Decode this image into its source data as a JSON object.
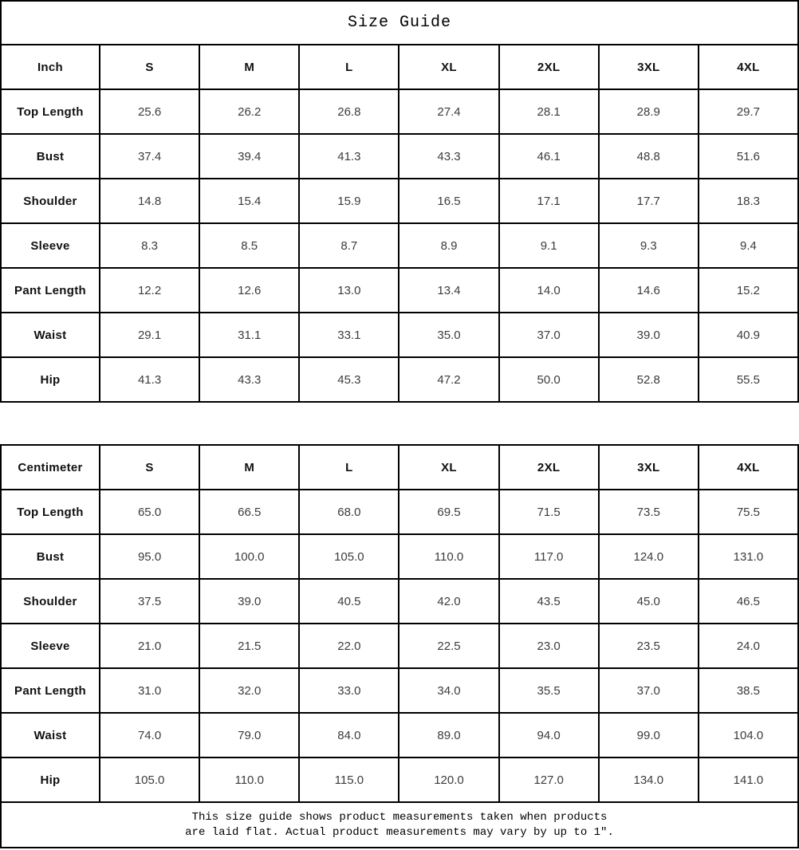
{
  "title": "Size Guide",
  "sizes": [
    "S",
    "M",
    "L",
    "XL",
    "2XL",
    "3XL",
    "4XL"
  ],
  "tables": [
    {
      "unit_label": "Inch",
      "rows": [
        {
          "label": "Top Length",
          "values": [
            "25.6",
            "26.2",
            "26.8",
            "27.4",
            "28.1",
            "28.9",
            "29.7"
          ]
        },
        {
          "label": "Bust",
          "values": [
            "37.4",
            "39.4",
            "41.3",
            "43.3",
            "46.1",
            "48.8",
            "51.6"
          ]
        },
        {
          "label": "Shoulder",
          "values": [
            "14.8",
            "15.4",
            "15.9",
            "16.5",
            "17.1",
            "17.7",
            "18.3"
          ]
        },
        {
          "label": "Sleeve",
          "values": [
            "8.3",
            "8.5",
            "8.7",
            "8.9",
            "9.1",
            "9.3",
            "9.4"
          ]
        },
        {
          "label": "Pant Length",
          "values": [
            "12.2",
            "12.6",
            "13.0",
            "13.4",
            "14.0",
            "14.6",
            "15.2"
          ]
        },
        {
          "label": "Waist",
          "values": [
            "29.1",
            "31.1",
            "33.1",
            "35.0",
            "37.0",
            "39.0",
            "40.9"
          ]
        },
        {
          "label": "Hip",
          "values": [
            "41.3",
            "43.3",
            "45.3",
            "47.2",
            "50.0",
            "52.8",
            "55.5"
          ]
        }
      ]
    },
    {
      "unit_label": "Centimeter",
      "rows": [
        {
          "label": "Top Length",
          "values": [
            "65.0",
            "66.5",
            "68.0",
            "69.5",
            "71.5",
            "73.5",
            "75.5"
          ]
        },
        {
          "label": "Bust",
          "values": [
            "95.0",
            "100.0",
            "105.0",
            "110.0",
            "117.0",
            "124.0",
            "131.0"
          ]
        },
        {
          "label": "Shoulder",
          "values": [
            "37.5",
            "39.0",
            "40.5",
            "42.0",
            "43.5",
            "45.0",
            "46.5"
          ]
        },
        {
          "label": "Sleeve",
          "values": [
            "21.0",
            "21.5",
            "22.0",
            "22.5",
            "23.0",
            "23.5",
            "24.0"
          ]
        },
        {
          "label": "Pant Length",
          "values": [
            "31.0",
            "32.0",
            "33.0",
            "34.0",
            "35.5",
            "37.0",
            "38.5"
          ]
        },
        {
          "label": "Waist",
          "values": [
            "74.0",
            "79.0",
            "84.0",
            "89.0",
            "94.0",
            "99.0",
            "104.0"
          ]
        },
        {
          "label": "Hip",
          "values": [
            "105.0",
            "110.0",
            "115.0",
            "120.0",
            "127.0",
            "134.0",
            "141.0"
          ]
        }
      ]
    }
  ],
  "footer": {
    "line1": "This size guide shows product measurements taken when products",
    "line2": "are laid flat. Actual product measurements may vary by up to 1″."
  },
  "colors": {
    "border": "#000000",
    "label_text": "#111111",
    "value_text": "#3c3c3c",
    "background": "#ffffff"
  }
}
